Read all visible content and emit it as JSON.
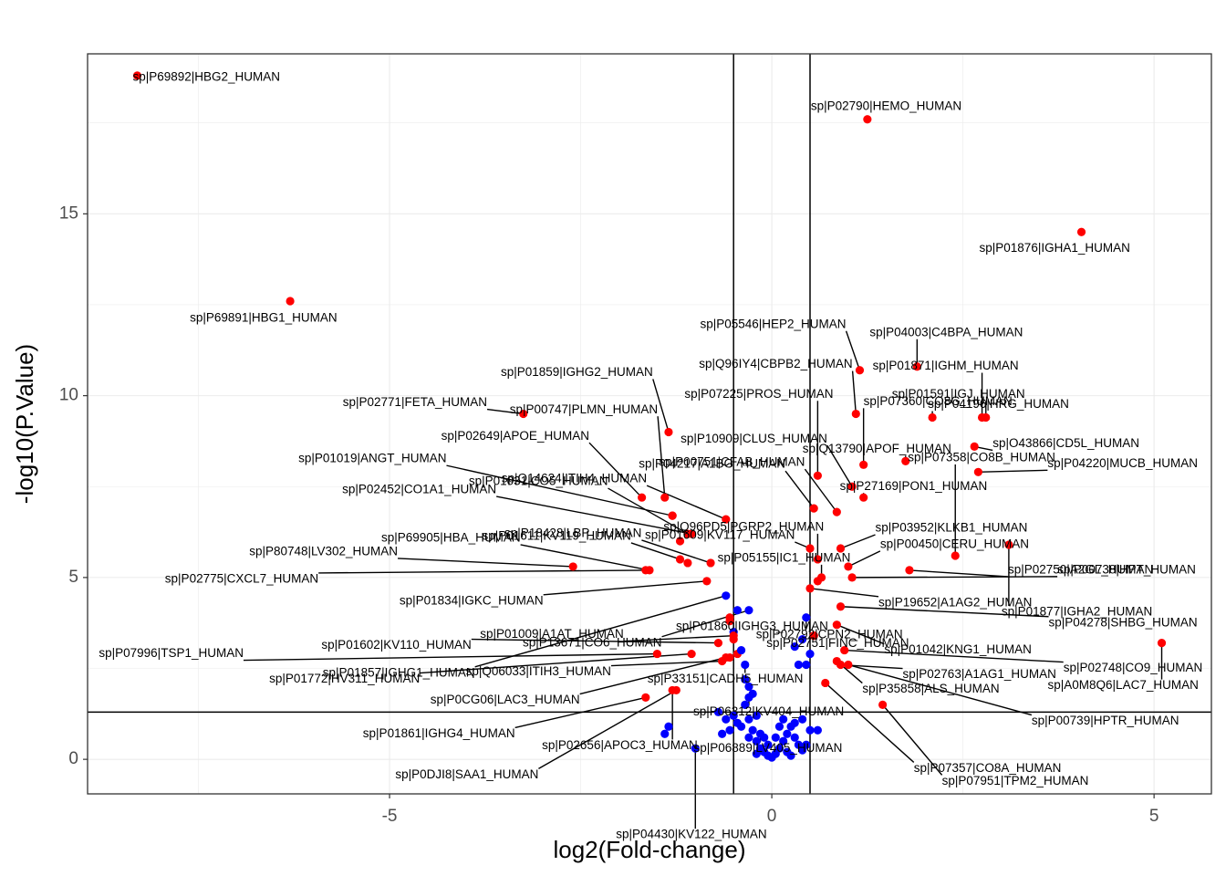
{
  "chart_data": {
    "type": "scatter",
    "xlabel": "log2(Fold-change)",
    "ylabel": "-log10(P.Value)",
    "xlim": [
      -8.95,
      5.75
    ],
    "ylim": [
      -0.95,
      19.4
    ],
    "x_ticks": [
      -5,
      0,
      5
    ],
    "y_ticks": [
      0,
      5,
      10,
      15
    ],
    "grid": true,
    "legend": "none",
    "thresholds": {
      "vlines": [
        -0.5,
        0.5
      ],
      "hline": 1.3
    },
    "colors": {
      "significant": "#ff0000",
      "not_significant": "#0000ff",
      "panel_border": "#333333",
      "grid": "#ebebeb"
    },
    "labeled_points": [
      {
        "label": "sp|P69892|HBG2_HUMAN",
        "x": -8.3,
        "y": 18.8,
        "sig": true
      },
      {
        "label": "sp|P02790|HEMO_HUMAN",
        "x": 1.25,
        "y": 17.6,
        "sig": true
      },
      {
        "label": "sp|P01876|IGHA1_HUMAN",
        "x": 4.05,
        "y": 14.5,
        "sig": true
      },
      {
        "label": "sp|P69891|HBG1_HUMAN",
        "x": -6.3,
        "y": 12.6,
        "sig": true
      },
      {
        "label": "sp|P05546|HEP2_HUMAN",
        "x": 1.15,
        "y": 10.7,
        "sig": true
      },
      {
        "label": "sp|P04003|C4BPA_HUMAN",
        "x": 1.9,
        "y": 10.8,
        "sig": true
      },
      {
        "label": "sp|P01871|IGHM_HUMAN",
        "x": 2.75,
        "y": 9.4,
        "sig": true
      },
      {
        "label": "sp|Q96IY4|CBPB2_HUMAN",
        "x": 1.1,
        "y": 9.5,
        "sig": true
      },
      {
        "label": "sp|P04196|HRG_HUMAN",
        "x": 2.1,
        "y": 9.4,
        "sig": true
      },
      {
        "label": "sp|P01859|IGHG2_HUMAN",
        "x": -1.35,
        "y": 9.0,
        "sig": true
      },
      {
        "label": "sp|P07360|CO8G_HUMAN",
        "x": 1.2,
        "y": 8.1,
        "sig": true
      },
      {
        "label": "sp|P10909|CLUS_HUMAN",
        "x": 1.05,
        "y": 7.5,
        "sig": true
      },
      {
        "label": "sp|P01591|IGJ_HUMAN",
        "x": 2.8,
        "y": 9.4,
        "sig": true
      },
      {
        "label": "sp|P02771|FETA_HUMAN",
        "x": -3.25,
        "y": 9.5,
        "sig": true
      },
      {
        "label": "sp|P00747|PLMN_HUMAN",
        "x": -1.4,
        "y": 7.2,
        "sig": true
      },
      {
        "label": "sp|O43866|CD5L_HUMAN",
        "x": 2.65,
        "y": 8.6,
        "sig": true
      },
      {
        "label": "sp|P07225|PROS_HUMAN",
        "x": 0.6,
        "y": 7.8,
        "sig": true
      },
      {
        "label": "sp|P02649|APOE_HUMAN",
        "x": -1.7,
        "y": 7.2,
        "sig": true
      },
      {
        "label": "sp|Q13790|APOF_HUMAN",
        "x": 1.75,
        "y": 8.2,
        "sig": true
      },
      {
        "label": "sp|P04220|MUCB_HUMAN",
        "x": 2.7,
        "y": 7.9,
        "sig": true
      },
      {
        "label": "sp|P04217|A1BG_HUMAN",
        "x": 0.55,
        "y": 6.9,
        "sig": true
      },
      {
        "label": "sp|P01019|ANGT_HUMAN",
        "x": -1.3,
        "y": 6.7,
        "sig": true
      },
      {
        "label": "sp|P01031|CO5_HUMAN",
        "x": -1.1,
        "y": 6.2,
        "sig": true
      },
      {
        "label": "sp|P27169|PON1_HUMAN",
        "x": 1.2,
        "y": 7.2,
        "sig": true
      },
      {
        "label": "sp|P07358|CO8B_HUMAN",
        "x": 2.4,
        "y": 5.6,
        "sig": true
      },
      {
        "label": "sp|P00751|CFAB_HUMAN",
        "x": 0.85,
        "y": 6.8,
        "sig": true
      },
      {
        "label": "sp|P02452|CO1A1_HUMAN",
        "x": -1.05,
        "y": 6.2,
        "sig": true
      },
      {
        "label": "sp|Q14624|ITIH4_HUMAN",
        "x": -0.6,
        "y": 6.6,
        "sig": true
      },
      {
        "label": "sp|P03952|KLKB1_HUMAN",
        "x": 0.9,
        "y": 5.8,
        "sig": true
      },
      {
        "label": "sp|P01877|IGHA2_HUMAN",
        "x": 3.1,
        "y": 5.9,
        "sig": true
      },
      {
        "label": "sp|Q96PD5|PGRP2_HUMAN",
        "x": 0.6,
        "y": 5.5,
        "sig": true
      },
      {
        "label": "sp|P01611|KV119_HUMAN",
        "x": -1.2,
        "y": 5.5,
        "sig": true
      },
      {
        "label": "sp|P69905|HBA_HUMAN",
        "x": -1.6,
        "y": 5.2,
        "sig": true
      },
      {
        "label": "sp|P00450|CERU_HUMAN",
        "x": 1.0,
        "y": 5.3,
        "sig": true
      },
      {
        "label": "sp|P02750|A2GL_HUMAN",
        "x": 1.8,
        "y": 5.2,
        "sig": true
      },
      {
        "label": "sp|P18428|LBP_HUMAN",
        "x": -0.8,
        "y": 5.4,
        "sig": true
      },
      {
        "label": "sp|P01609|KV117_HUMAN",
        "x": 0.5,
        "y": 5.8,
        "sig": true
      },
      {
        "label": "sp|P80748|LV302_HUMAN",
        "x": -2.6,
        "y": 5.3,
        "sig": true
      },
      {
        "label": "sp|P00738|HPT_HUMAN",
        "x": 1.05,
        "y": 5.0,
        "sig": true
      },
      {
        "label": "sp|P02775|CXCL7_HUMAN",
        "x": -1.65,
        "y": 5.2,
        "sig": true
      },
      {
        "label": "sp|P01834|IGKC_HUMAN",
        "x": -0.85,
        "y": 4.9,
        "sig": true
      },
      {
        "label": "sp|P05155|IC1_HUMAN",
        "x": 0.65,
        "y": 5.0,
        "sig": true
      },
      {
        "label": "sp|P19652|A1AG2_HUMAN",
        "x": 0.5,
        "y": 4.7,
        "sig": true
      },
      {
        "label": "sp|P04278|SHBG_HUMAN",
        "x": 0.9,
        "y": 4.2,
        "sig": true
      },
      {
        "label": "sp|P01857|IGHG1_HUMAN",
        "x": -0.6,
        "y": 4.5,
        "sig": false
      },
      {
        "label": "sp|P13671|CO6_HUMAN",
        "x": -0.3,
        "y": 4.1,
        "sig": false
      },
      {
        "label": "sp|P02792|CPN2_HUMAN",
        "x": 0.45,
        "y": 3.9,
        "sig": false
      },
      {
        "label": "sp|P01042|KNG1_HUMAN",
        "x": 0.85,
        "y": 3.7,
        "sig": true
      },
      {
        "label": "sp|P02748|CO9_HUMAN",
        "x": 0.95,
        "y": 3.0,
        "sig": true
      },
      {
        "label": "sp|P01860|IGHG3_HUMAN",
        "x": -0.55,
        "y": 3.8,
        "sig": true
      },
      {
        "label": "sp|P01602|KV110_HUMAN",
        "x": -0.7,
        "y": 3.2,
        "sig": true
      },
      {
        "label": "sp|P01009|A1AT_HUMAN",
        "x": -0.5,
        "y": 3.4,
        "sig": true
      },
      {
        "label": "sp|P07996|TSP1_HUMAN",
        "x": -1.5,
        "y": 2.9,
        "sig": true
      },
      {
        "label": "sp|P02751|FINC_HUMAN",
        "x": 0.55,
        "y": 3.4,
        "sig": true
      },
      {
        "label": "sp|P02763|A1AG1_HUMAN",
        "x": 0.9,
        "y": 2.6,
        "sig": true
      },
      {
        "label": "sp|P01772|HV311_HUMAN",
        "x": -1.05,
        "y": 2.9,
        "sig": true
      },
      {
        "label": "sp|Q06033|ITIH3_HUMAN",
        "x": -0.65,
        "y": 2.7,
        "sig": true
      },
      {
        "label": "sp|A0M8Q6|LAC7_HUMAN",
        "x": 5.1,
        "y": 3.2,
        "sig": true
      },
      {
        "label": "sp|P33151|CADH5_HUMAN",
        "x": -0.35,
        "y": 2.6,
        "sig": false
      },
      {
        "label": "sp|P35858|ALS_HUMAN",
        "x": 0.85,
        "y": 2.7,
        "sig": true
      },
      {
        "label": "sp|P0CG06|LAC3_HUMAN",
        "x": -0.6,
        "y": 2.8,
        "sig": true
      },
      {
        "label": "sp|P00739|HPTR_HUMAN",
        "x": 1.0,
        "y": 2.6,
        "sig": true
      },
      {
        "label": "sp|P06312|KV404_HUMAN",
        "x": -0.3,
        "y": 1.7,
        "sig": false
      },
      {
        "label": "sp|P01861|IGHG4_HUMAN",
        "x": -1.65,
        "y": 1.7,
        "sig": true
      },
      {
        "label": "sp|P07357|CO8A_HUMAN",
        "x": 0.7,
        "y": 2.1,
        "sig": true
      },
      {
        "label": "sp|P02656|APOC3_HUMAN",
        "x": -1.3,
        "y": 1.9,
        "sig": true
      },
      {
        "label": "sp|P06889|LV405_HUMAN",
        "x": -0.15,
        "y": 0.7,
        "sig": false
      },
      {
        "label": "sp|P0DJI8|SAA1_HUMAN",
        "x": -1.25,
        "y": 1.9,
        "sig": true
      },
      {
        "label": "sp|P04430|KV122_HUMAN",
        "x": -1.0,
        "y": 0.3,
        "sig": false
      },
      {
        "label": "sp|P07951|TPM2_HUMAN",
        "x": 1.45,
        "y": 1.5,
        "sig": true
      }
    ],
    "other_points": [
      {
        "x": -1.3,
        "y": 6.7,
        "sig": true
      },
      {
        "x": -1.1,
        "y": 5.4,
        "sig": true
      },
      {
        "x": -1.2,
        "y": 6.0,
        "sig": true
      },
      {
        "x": -0.55,
        "y": 3.9,
        "sig": true
      },
      {
        "x": -0.45,
        "y": 2.9,
        "sig": true
      },
      {
        "x": -0.5,
        "y": 3.3,
        "sig": true
      },
      {
        "x": -0.55,
        "y": 2.8,
        "sig": true
      },
      {
        "x": 0.6,
        "y": 4.9,
        "sig": true
      },
      {
        "x": 0.55,
        "y": 3.4,
        "sig": true
      },
      {
        "x": -0.45,
        "y": 4.1,
        "sig": false
      },
      {
        "x": -0.5,
        "y": 3.5,
        "sig": false
      },
      {
        "x": -0.4,
        "y": 3.0,
        "sig": false
      },
      {
        "x": -0.35,
        "y": 2.2,
        "sig": false
      },
      {
        "x": -0.3,
        "y": 2.0,
        "sig": false
      },
      {
        "x": -0.25,
        "y": 1.8,
        "sig": false
      },
      {
        "x": -0.35,
        "y": 1.5,
        "sig": false
      },
      {
        "x": -0.2,
        "y": 1.2,
        "sig": false
      },
      {
        "x": -0.3,
        "y": 1.1,
        "sig": false
      },
      {
        "x": -0.4,
        "y": 0.9,
        "sig": false
      },
      {
        "x": -0.25,
        "y": 0.8,
        "sig": false
      },
      {
        "x": -0.2,
        "y": 0.5,
        "sig": false
      },
      {
        "x": -0.15,
        "y": 0.3,
        "sig": false
      },
      {
        "x": -0.1,
        "y": 0.2,
        "sig": false
      },
      {
        "x": -0.05,
        "y": 0.1,
        "sig": false
      },
      {
        "x": 0.0,
        "y": 0.05,
        "sig": false
      },
      {
        "x": 0.05,
        "y": 0.15,
        "sig": false
      },
      {
        "x": 0.1,
        "y": 0.3,
        "sig": false
      },
      {
        "x": 0.15,
        "y": 0.5,
        "sig": false
      },
      {
        "x": 0.2,
        "y": 0.7,
        "sig": false
      },
      {
        "x": 0.25,
        "y": 0.9,
        "sig": false
      },
      {
        "x": 0.3,
        "y": 0.6,
        "sig": false
      },
      {
        "x": 0.35,
        "y": 0.4,
        "sig": false
      },
      {
        "x": 0.4,
        "y": 0.25,
        "sig": false
      },
      {
        "x": 0.1,
        "y": 0.9,
        "sig": false
      },
      {
        "x": 0.15,
        "y": 1.1,
        "sig": false
      },
      {
        "x": 0.2,
        "y": 0.2,
        "sig": false
      },
      {
        "x": -0.1,
        "y": 0.6,
        "sig": false
      },
      {
        "x": -0.05,
        "y": 0.4,
        "sig": false
      },
      {
        "x": 0.05,
        "y": 0.6,
        "sig": false
      },
      {
        "x": 0.25,
        "y": 0.1,
        "sig": false
      },
      {
        "x": 0.3,
        "y": 1.0,
        "sig": false
      },
      {
        "x": 0.4,
        "y": 1.1,
        "sig": false
      },
      {
        "x": 0.35,
        "y": 2.6,
        "sig": false
      },
      {
        "x": 0.45,
        "y": 2.6,
        "sig": false
      },
      {
        "x": 0.3,
        "y": 3.1,
        "sig": false
      },
      {
        "x": 0.4,
        "y": 3.3,
        "sig": false
      },
      {
        "x": 0.5,
        "y": 2.9,
        "sig": false
      },
      {
        "x": 0.5,
        "y": 0.8,
        "sig": false
      },
      {
        "x": 0.6,
        "y": 0.8,
        "sig": false
      },
      {
        "x": 0.45,
        "y": 0.4,
        "sig": false
      },
      {
        "x": -0.55,
        "y": 0.8,
        "sig": false
      },
      {
        "x": -0.65,
        "y": 0.7,
        "sig": false
      },
      {
        "x": -0.7,
        "y": 1.3,
        "sig": false
      },
      {
        "x": -1.35,
        "y": 0.9,
        "sig": false
      },
      {
        "x": -1.4,
        "y": 0.7,
        "sig": false
      },
      {
        "x": -0.5,
        "y": 1.2,
        "sig": false
      },
      {
        "x": -0.45,
        "y": 1.0,
        "sig": false
      },
      {
        "x": -0.6,
        "y": 1.1,
        "sig": false
      },
      {
        "x": -0.3,
        "y": 0.6,
        "sig": false
      },
      {
        "x": -0.2,
        "y": 0.15,
        "sig": false
      }
    ]
  }
}
